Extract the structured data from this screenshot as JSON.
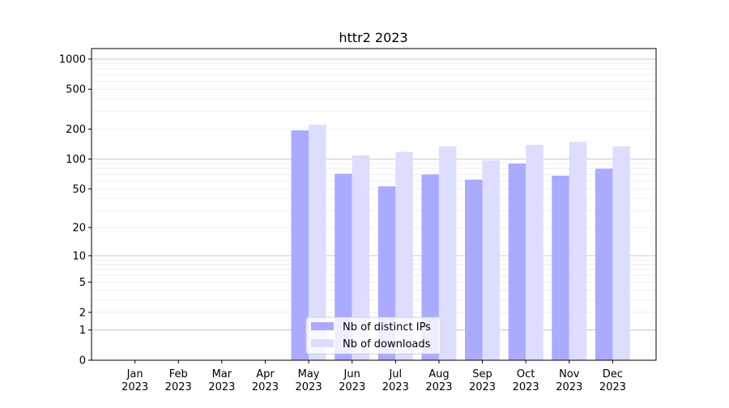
{
  "chart_data": {
    "type": "bar",
    "title": "httr2 2023",
    "xlabel": "",
    "ylabel": "",
    "yscale": "log10(1+y)",
    "ylim": [
      0,
      1300
    ],
    "yticks": [
      0,
      1,
      2,
      5,
      10,
      20,
      50,
      100,
      200,
      500,
      1000
    ],
    "grid": true,
    "legend_position": "lower center",
    "categories": [
      "Jan\n2023",
      "Feb\n2023",
      "Mar\n2023",
      "Apr\n2023",
      "May\n2023",
      "Jun\n2023",
      "Jul\n2023",
      "Aug\n2023",
      "Sep\n2023",
      "Oct\n2023",
      "Nov\n2023",
      "Dec\n2023"
    ],
    "series": [
      {
        "name": "Nb of distinct IPs",
        "color": "#aaaaff",
        "values": [
          0,
          0,
          0,
          0,
          194,
          71,
          53,
          70,
          62,
          90,
          68,
          80
        ]
      },
      {
        "name": "Nb of downloads",
        "color": "#ddddff",
        "values": [
          0,
          0,
          0,
          0,
          221,
          109,
          118,
          134,
          97,
          139,
          149,
          134
        ]
      }
    ]
  }
}
